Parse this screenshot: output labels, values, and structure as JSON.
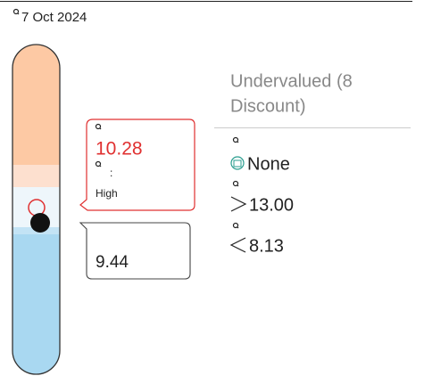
{
  "header": {
    "date": "7 Oct 2024"
  },
  "valuation": {
    "label_lines": [
      "Undervalued (8",
      "Discount)"
    ]
  },
  "price_callout": {
    "value": "10.28",
    "separator": ":",
    "level": "High"
  },
  "fair_callout": {
    "value": "9.44"
  },
  "details": {
    "status": "None",
    "upper": "13.00",
    "lower": "8.13"
  }
}
